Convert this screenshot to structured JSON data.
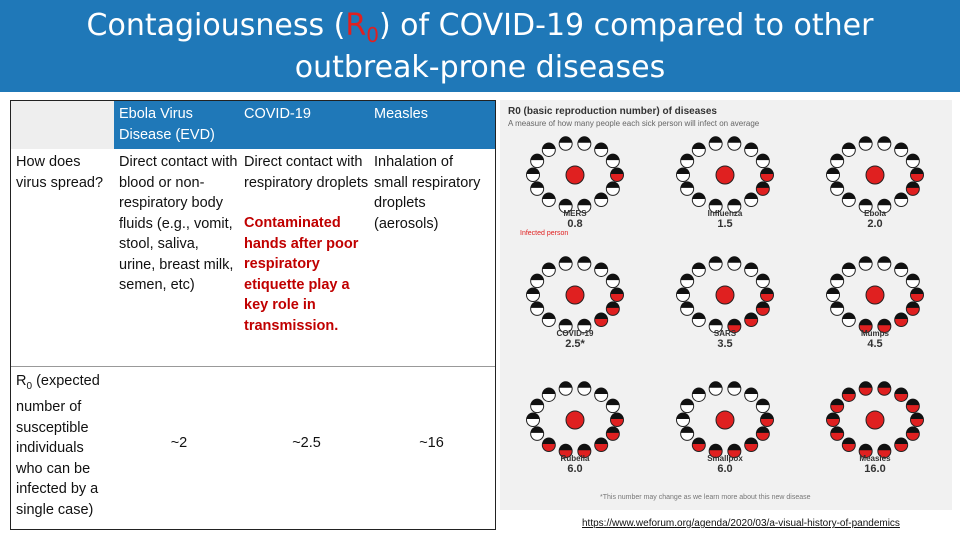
{
  "title": {
    "line1_before": "Contagiousness (",
    "r_letter": "R",
    "r_sub": "0",
    "line1_after": ") of COVID-19 compared to other",
    "line2": "outbreak-prone diseases"
  },
  "table": {
    "headers": [
      "Ebola Virus Disease (EVD)",
      "COVID-19",
      "Measles"
    ],
    "spread_row": {
      "label": "How does virus spread?",
      "ebola": "Direct contact with blood or non-respiratory body fluids (e.g., vomit, stool, saliva, urine, breast milk, semen, etc)",
      "covid_plain": "Direct contact with respiratory droplets",
      "covid_red": "Contaminated hands after poor respiratory etiquette play a key role in transmission.",
      "measles": "Inhalation of small respiratory droplets (aerosols)"
    },
    "r0_row": {
      "label_r": "R",
      "label_sub": "0",
      "label_rest": " (expected number of susceptible individuals who can be infected by a single case)",
      "ebola": "~2",
      "covid": "~2.5",
      "measles": "~16"
    }
  },
  "infographic": {
    "title": "R0 (basic reproduction number) of diseases",
    "subtitle": "A measure of how many people each sick person will infect on average",
    "infected_label": "Infected person",
    "footnote": "*This number may change as we learn more about this new disease",
    "diseases": [
      {
        "name": "MERS",
        "r0": "0.8"
      },
      {
        "name": "Influenza",
        "r0": "1.5"
      },
      {
        "name": "Ebola",
        "r0": "2.0"
      },
      {
        "name": "COVID-19",
        "r0": "2.5*"
      },
      {
        "name": "SARS",
        "r0": "3.5"
      },
      {
        "name": "Mumps",
        "r0": "4.5"
      },
      {
        "name": "Rubella",
        "r0": "6.0"
      },
      {
        "name": "Smallpox",
        "r0": "6.0"
      },
      {
        "name": "Measles",
        "r0": "16.0"
      }
    ],
    "colors": {
      "infected": "#e02020",
      "healthy": "#ffffff"
    }
  },
  "source": "https://www.weforum.org/agenda/2020/03/a-visual-history-of-pandemics"
}
